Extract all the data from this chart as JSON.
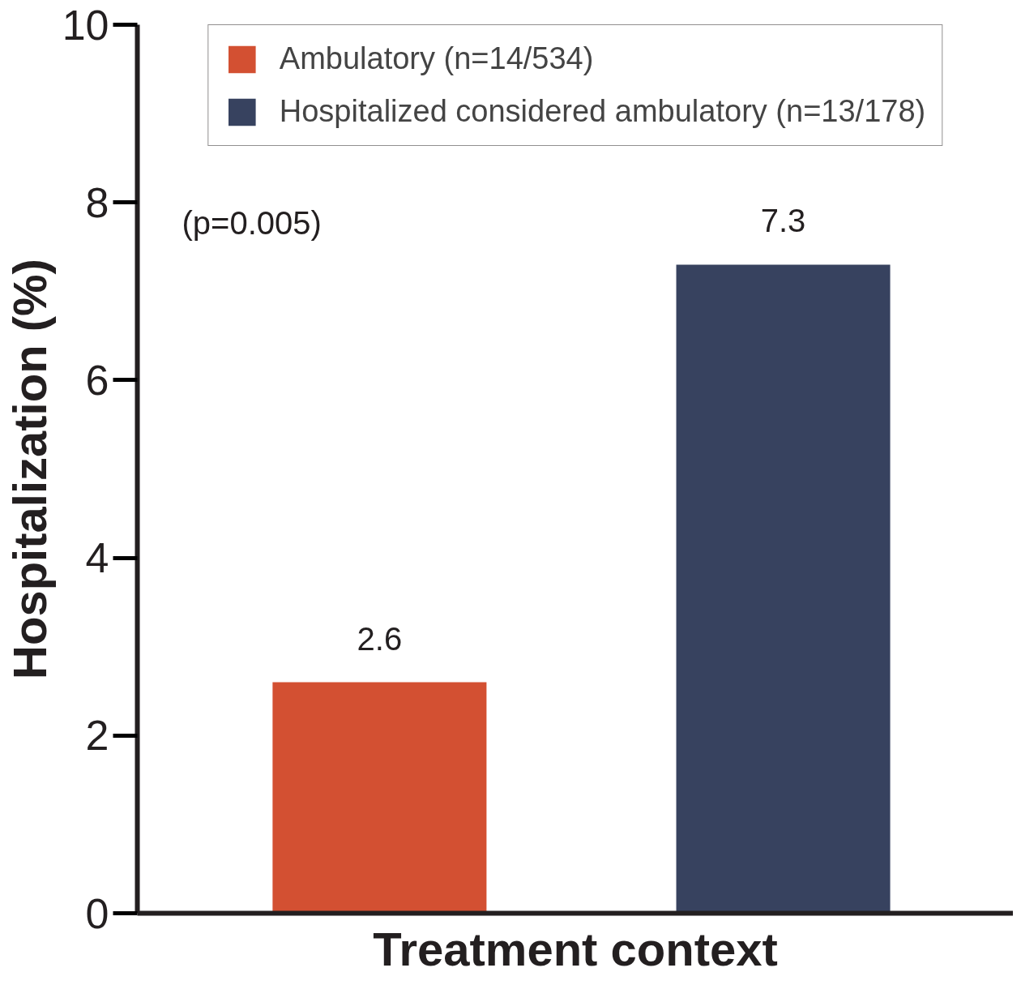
{
  "chart_data": {
    "type": "bar",
    "xlabel": "Treatment context",
    "ylabel": "Hospitalization (%)",
    "categories": [
      null,
      null
    ],
    "series": [
      {
        "name": "Ambulatory (n=14/534)",
        "color": "#d35032",
        "values": [
          2.6,
          null
        ]
      },
      {
        "name": "Hospitalized considered ambulatory (n=13/178)",
        "color": "#37425f",
        "values": [
          null,
          7.3
        ]
      }
    ],
    "ylim": [
      0,
      10
    ],
    "yticks": [
      0,
      2,
      4,
      6,
      8,
      10
    ],
    "grid": false,
    "legend": "top",
    "tick_labels": "y",
    "data_labels": true,
    "annotations": [
      "(p=0.005)"
    ]
  }
}
